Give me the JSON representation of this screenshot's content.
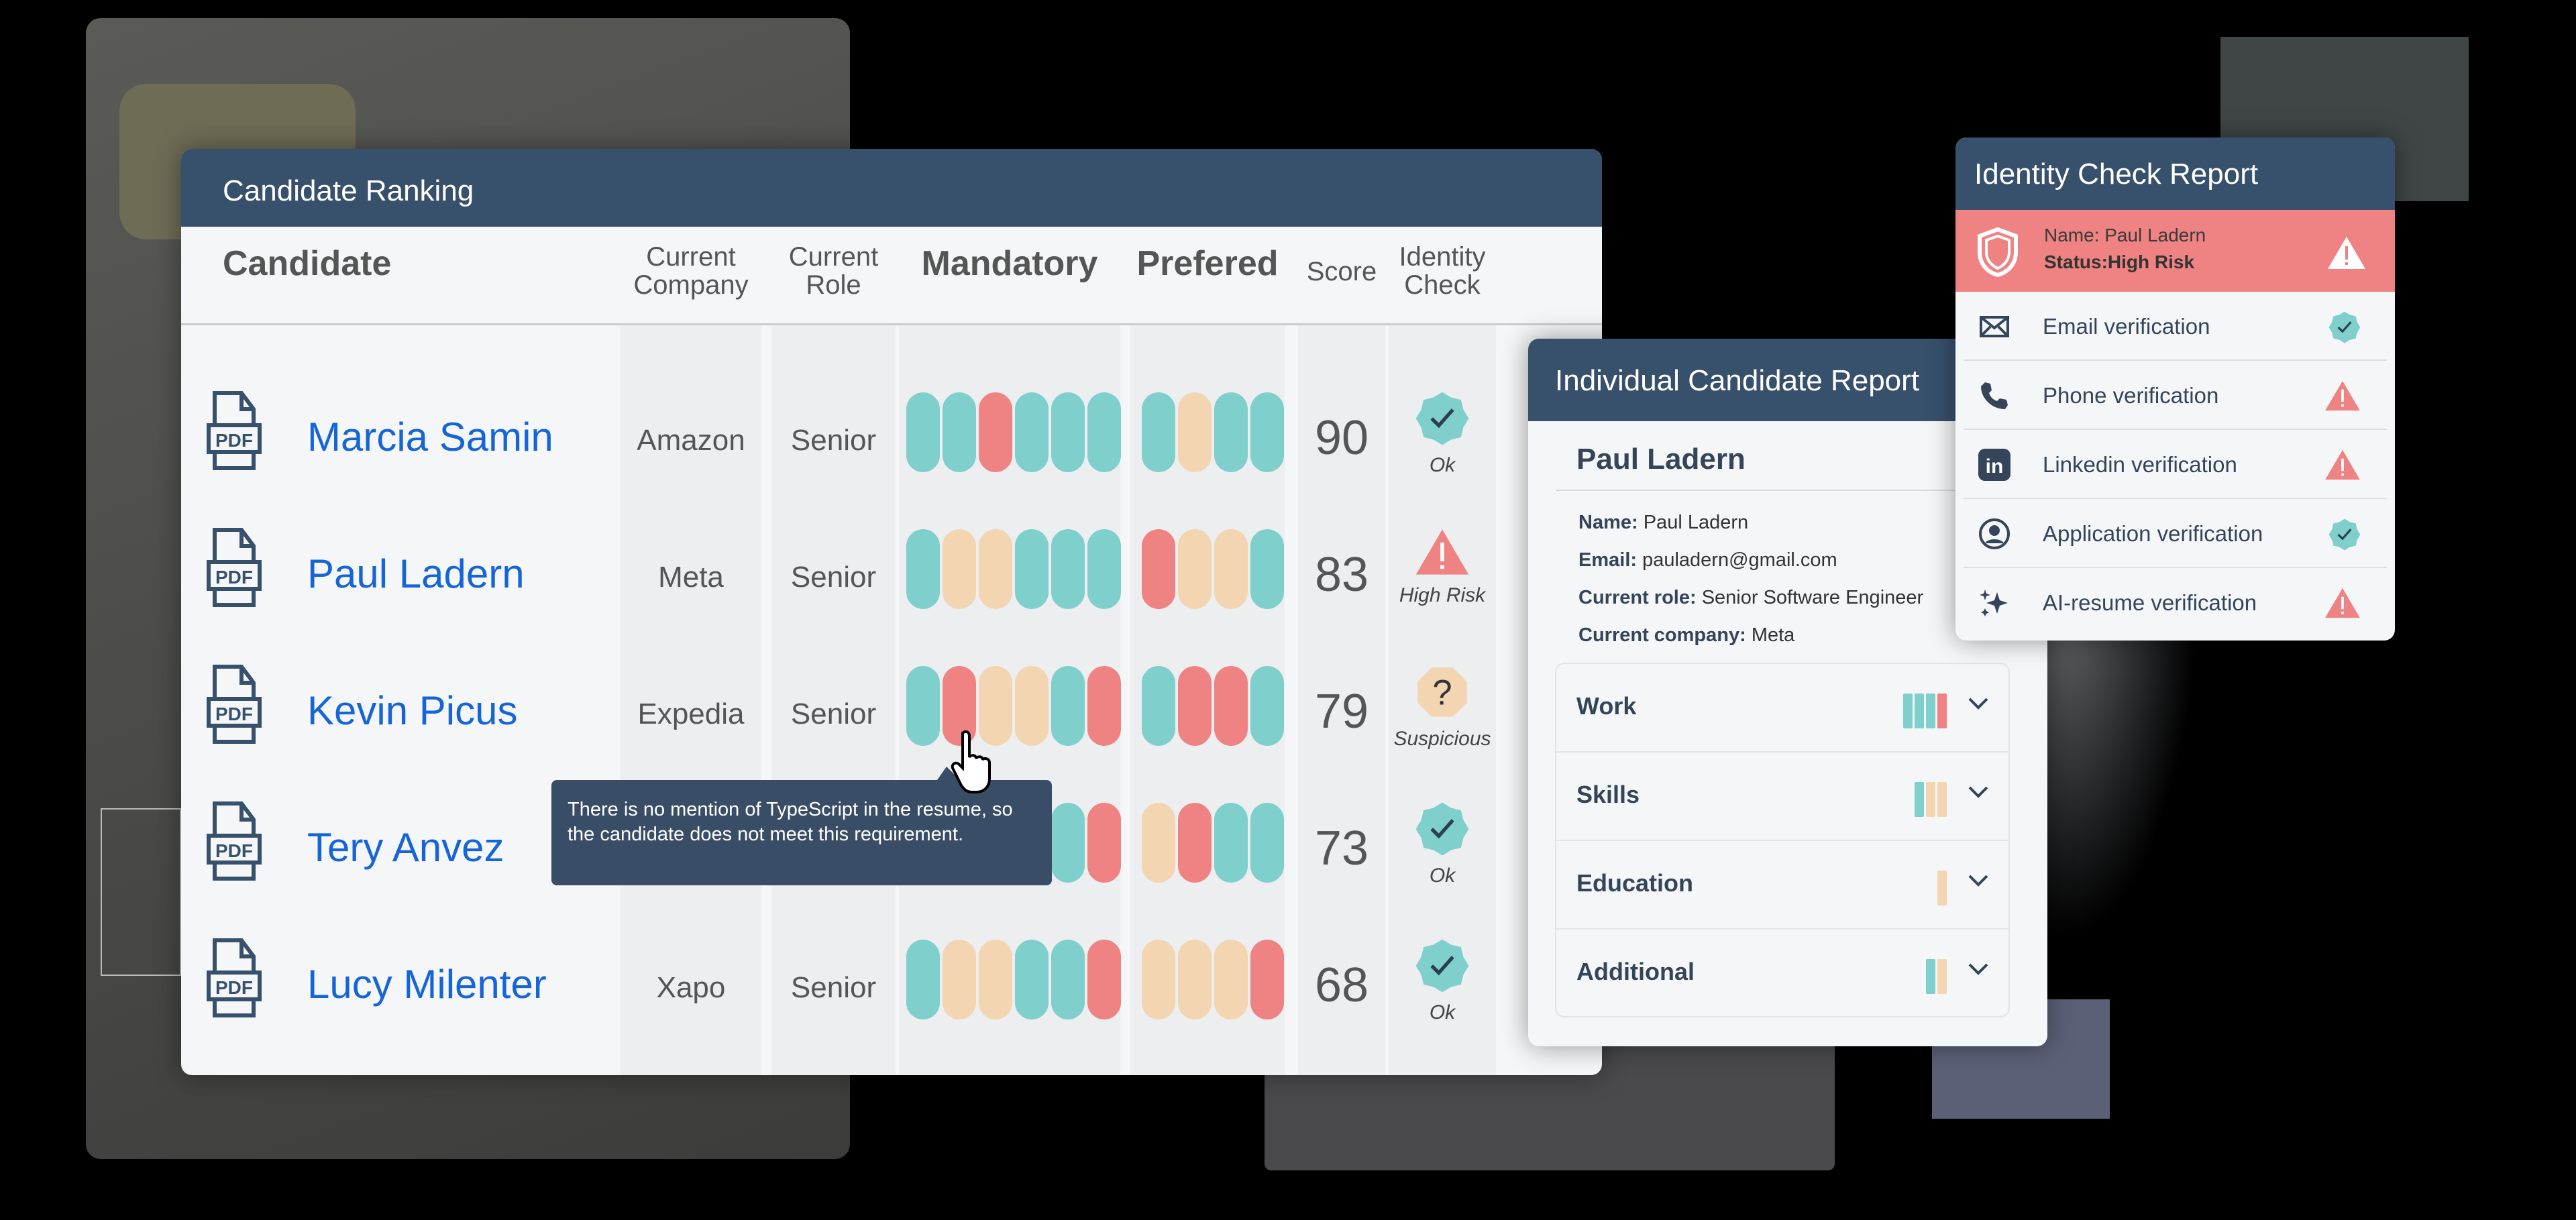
{
  "colors": {
    "teal": "#7fcfcc",
    "red": "#ef8383",
    "peach": "#f3d5b1",
    "navy": "#37506b",
    "link": "#1565d8"
  },
  "ranking": {
    "title": "Candidate Ranking",
    "headers": {
      "candidate": "Candidate",
      "company": "Current Company",
      "role": "Current Role",
      "mandatory": "Mandatory",
      "preferred": "Prefered",
      "score": "Score",
      "identity": "Identity Check"
    },
    "rows": [
      {
        "name": "Marcia Samin",
        "company": "Amazon",
        "role": "Senior",
        "mandatory": [
          "teal",
          "teal",
          "red",
          "teal",
          "teal",
          "teal"
        ],
        "preferred": [
          "teal",
          "peach",
          "teal",
          "teal"
        ],
        "score": "90",
        "identity": "Ok",
        "identity_icon": "check-badge-icon"
      },
      {
        "name": "Paul Ladern",
        "company": "Meta",
        "role": "Senior",
        "mandatory": [
          "teal",
          "peach",
          "peach",
          "teal",
          "teal",
          "teal"
        ],
        "preferred": [
          "red",
          "peach",
          "peach",
          "teal"
        ],
        "score": "83",
        "identity": "High Risk",
        "identity_icon": "warning-icon"
      },
      {
        "name": "Kevin Picus",
        "company": "Expedia",
        "role": "Senior",
        "mandatory": [
          "teal",
          "red",
          "peach",
          "peach",
          "teal",
          "red"
        ],
        "preferred": [
          "teal",
          "red",
          "red",
          "teal"
        ],
        "score": "79",
        "identity": "Suspicious",
        "identity_icon": "question-icon"
      },
      {
        "name": "Tery Anvez",
        "company": "",
        "role": "",
        "mandatory": [
          "teal",
          "teal",
          "teal",
          "teal",
          "teal",
          "red"
        ],
        "preferred": [
          "peach",
          "red",
          "teal",
          "teal"
        ],
        "score": "73",
        "identity": "Ok",
        "identity_icon": "check-badge-icon"
      },
      {
        "name": "Lucy Milenter",
        "company": "Xapo",
        "role": "Senior",
        "mandatory": [
          "teal",
          "peach",
          "peach",
          "teal",
          "teal",
          "red"
        ],
        "preferred": [
          "peach",
          "peach",
          "peach",
          "red"
        ],
        "score": "68",
        "identity": "Ok",
        "identity_icon": "check-badge-icon"
      }
    ],
    "pdf_label": "PDF",
    "tooltip": "There is no mention of TypeScript in the resume, so the candidate does not meet this requirement."
  },
  "individual": {
    "title": "Individual Candidate Report",
    "candidate": "Paul Ladern",
    "fields": [
      {
        "label": "Name:",
        "value": "Paul Ladern"
      },
      {
        "label": "Email:",
        "value": "pauladern@gmail.com"
      },
      {
        "label": "Current role:",
        "value": "Senior Software Engineer"
      },
      {
        "label": "Current company:",
        "value": "Meta"
      }
    ],
    "sections": [
      {
        "label": "Work",
        "bars": [
          "teal",
          "teal",
          "teal",
          "red"
        ]
      },
      {
        "label": "Skills",
        "bars": [
          "teal",
          "peach",
          "peach"
        ]
      },
      {
        "label": "Education",
        "bars": [
          "peach"
        ]
      },
      {
        "label": "Additional",
        "bars": [
          "teal",
          "peach"
        ]
      }
    ]
  },
  "identity_report": {
    "title": "Identity Check Report",
    "name_line": "Name: Paul Ladern",
    "status_line": "Status:High Risk",
    "checks": [
      {
        "label": "Email verification",
        "icon": "envelope-icon",
        "status": "ok"
      },
      {
        "label": "Phone verification",
        "icon": "phone-icon",
        "status": "warning"
      },
      {
        "label": "Linkedin verification",
        "icon": "linkedin-icon",
        "status": "warning"
      },
      {
        "label": "Application verification",
        "icon": "user-circle-icon",
        "status": "ok"
      },
      {
        "label": "AI-resume verification",
        "icon": "sparkle-icon",
        "status": "warning"
      }
    ]
  }
}
